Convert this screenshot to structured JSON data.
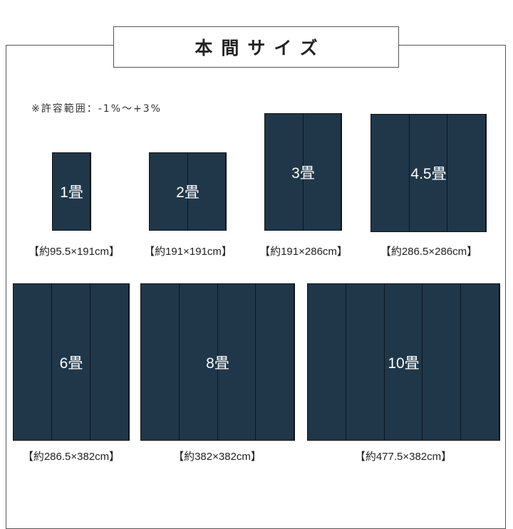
{
  "title": "本間サイズ",
  "note": "※許容範囲：-1%～+3%",
  "mat_color": "#1f3749",
  "mats": [
    {
      "label": "1畳",
      "size": "【約95.5×191cm】",
      "strips": 1
    },
    {
      "label": "2畳",
      "size": "【約191×191cm】",
      "strips": 2
    },
    {
      "label": "3畳",
      "size": "【約191×286cm】",
      "strips": 2
    },
    {
      "label": "4.5畳",
      "size": "【約286.5×286cm】",
      "strips": 3
    },
    {
      "label": "6畳",
      "size": "【約286.5×382cm】",
      "strips": 3
    },
    {
      "label": "8畳",
      "size": "【約382×382cm】",
      "strips": 4
    },
    {
      "label": "10畳",
      "size": "【約477.5×382cm】",
      "strips": 5
    }
  ]
}
